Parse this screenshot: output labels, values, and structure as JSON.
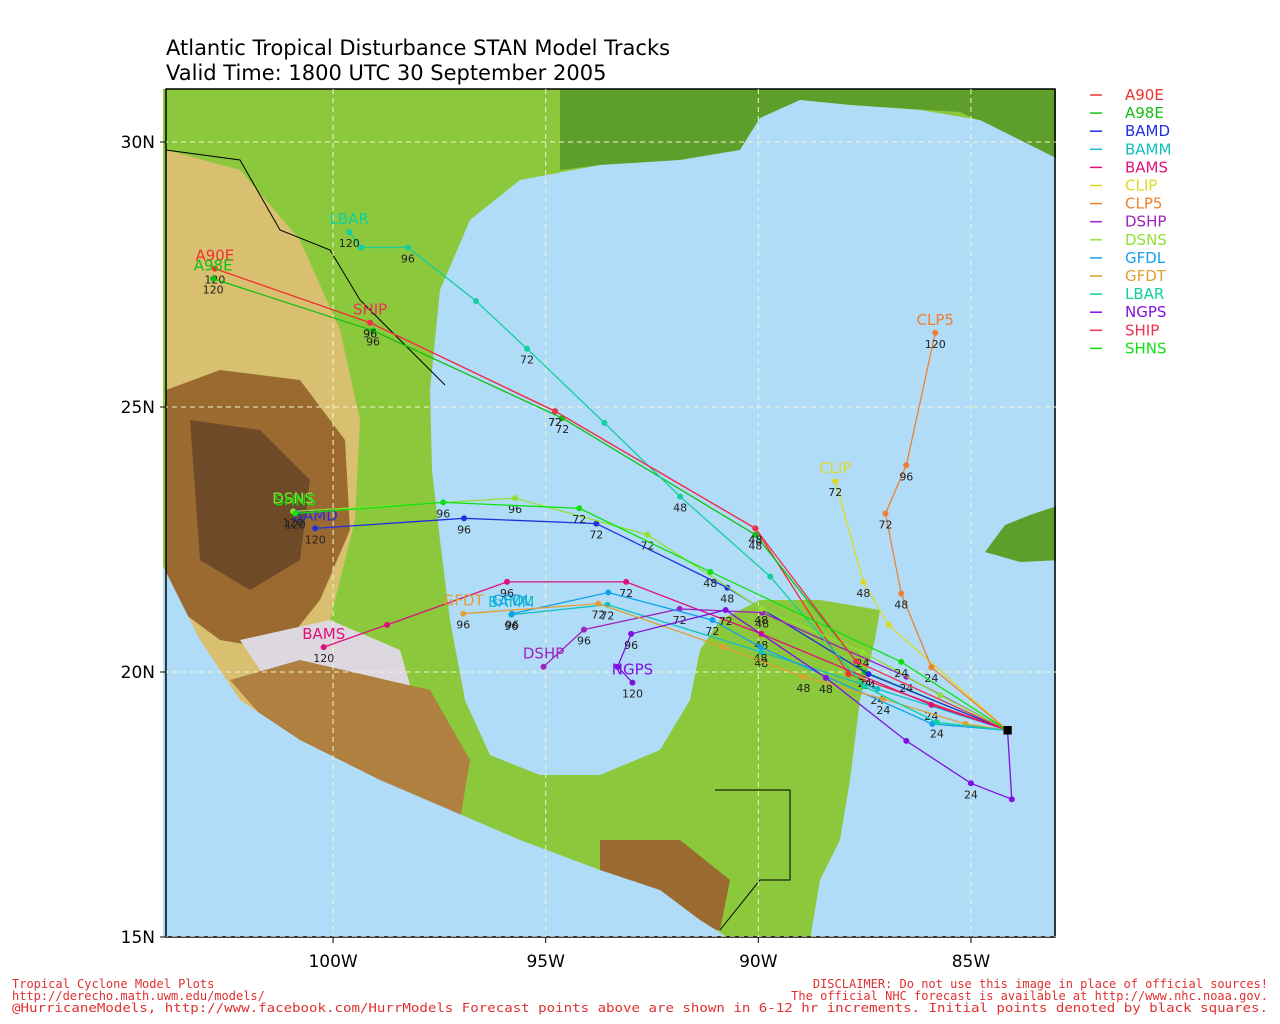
{
  "chart_data": {
    "type": "map-tracks",
    "title": "Atlantic Tropical Disturbance STAN Model Tracks",
    "subtitle": "Valid Time: 1800 UTC 30 September 2005",
    "xlim": [
      -104,
      -83
    ],
    "ylim": [
      15,
      31
    ],
    "xticks": [
      {
        "value": -100,
        "label": "100W"
      },
      {
        "value": -95,
        "label": "95W"
      },
      {
        "value": -90,
        "label": "90W"
      },
      {
        "value": -85,
        "label": "85W"
      }
    ],
    "yticks": [
      {
        "value": 15,
        "label": "15N"
      },
      {
        "value": 20,
        "label": "20N"
      },
      {
        "value": 25,
        "label": "25N"
      },
      {
        "value": 30,
        "label": "30N"
      }
    ],
    "grid": true,
    "series": [
      {
        "name": "A90E",
        "color": "#f03030",
        "x": [
          -84.14,
          -87.88,
          -90.07,
          -94.78,
          -99.13,
          -102.78
        ],
        "y": [
          18.9,
          19.96,
          22.71,
          24.92,
          26.59,
          27.61
        ],
        "point_labels": [
          null,
          null,
          "48",
          "72",
          "96",
          "120"
        ]
      },
      {
        "name": "A98E",
        "color": "#10c010",
        "x": [
          -84.14,
          -87.5,
          -90.07,
          -94.61,
          -99.06,
          -102.82
        ],
        "y": [
          18.9,
          20.0,
          22.59,
          24.79,
          26.44,
          27.42
        ],
        "point_labels": [
          null,
          "24",
          "48",
          "72",
          "96",
          "120"
        ]
      },
      {
        "name": "BAMD",
        "color": "#2030e0",
        "x": [
          -84.14,
          -87.41,
          -90.73,
          -93.81,
          -96.92,
          -100.42
        ],
        "y": [
          18.9,
          19.96,
          21.59,
          22.8,
          22.9,
          22.71
        ],
        "point_labels": [
          null,
          "24",
          "48",
          "72",
          "96",
          "120"
        ]
      },
      {
        "name": "BAMM",
        "color": "#10c0c0",
        "x": [
          -84.14,
          -87.2,
          -89.93,
          -93.55,
          -95.81
        ],
        "y": [
          18.9,
          19.68,
          20.38,
          21.27,
          21.08
        ],
        "point_labels": [
          null,
          "24",
          "48",
          "72",
          "96"
        ]
      },
      {
        "name": "BAMS",
        "color": "#e0107a",
        "x": [
          -84.14,
          -85.93,
          -89.93,
          -93.11,
          -95.91,
          -98.73,
          -100.22
        ],
        "y": [
          18.9,
          19.38,
          20.72,
          21.7,
          21.7,
          20.89,
          20.47
        ],
        "point_labels": [
          null,
          "24",
          "48",
          "72",
          "96",
          null,
          "120"
        ]
      },
      {
        "name": "CLIP",
        "color": "#e0d820",
        "x": [
          -84.14,
          -86.94,
          -87.53,
          -88.19
        ],
        "y": [
          18.9,
          20.89,
          21.7,
          23.6
        ],
        "point_labels": [
          null,
          null,
          "48",
          "72"
        ]
      },
      {
        "name": "CLP5",
        "color": "#f08030",
        "x": [
          -84.14,
          -85.93,
          -86.64,
          -87.01,
          -86.52,
          -85.84
        ],
        "y": [
          18.9,
          20.09,
          21.48,
          22.99,
          23.9,
          26.4
        ],
        "point_labels": [
          null,
          "24",
          "48",
          "72",
          "96",
          "120"
        ]
      },
      {
        "name": "DSHP",
        "color": "#a020c0",
        "x": [
          -84.14,
          -86.52,
          -89.91,
          -91.85,
          -94.1,
          -95.05
        ],
        "y": [
          18.9,
          19.91,
          21.12,
          21.19,
          20.8,
          20.1
        ],
        "point_labels": [
          null,
          "24",
          "48",
          "72",
          "96",
          null
        ]
      },
      {
        "name": "DSNS",
        "color": "#90e030",
        "x": [
          -84.14,
          -85.72,
          -87.55,
          -89.93,
          -92.61,
          -95.72,
          -100.94
        ],
        "y": [
          18.9,
          19.56,
          20.38,
          21.19,
          22.59,
          23.28,
          23.03
        ],
        "point_labels": [
          null,
          null,
          "24",
          "48",
          "72",
          "96",
          "120"
        ]
      },
      {
        "name": "GFDL",
        "color": "#10a0f0",
        "x": [
          -84.14,
          -85.91,
          -89.95,
          -91.08,
          -93.53,
          -95.79
        ],
        "y": [
          18.9,
          19.02,
          20.47,
          20.98,
          21.5,
          21.1
        ],
        "point_labels": [
          null,
          null,
          "48",
          "72",
          null,
          "96"
        ]
      },
      {
        "name": "GFDT",
        "color": "#e0a030",
        "x": [
          -84.14,
          -85.13,
          -87.06,
          -88.94,
          -90.82,
          -93.76,
          -96.94
        ],
        "y": [
          18.9,
          19.02,
          19.49,
          19.91,
          20.47,
          21.29,
          21.1
        ],
        "point_labels": [
          null,
          null,
          "24",
          "48",
          null,
          "72",
          "96"
        ]
      },
      {
        "name": "LBAR",
        "color": "#10d0a0",
        "x": [
          -84.14,
          -85.8,
          -87.51,
          -89.72,
          -91.84,
          -93.62,
          -95.44,
          -96.64,
          -98.24,
          -99.34,
          -99.62
        ],
        "y": [
          18.9,
          19.05,
          19.73,
          21.8,
          23.31,
          24.7,
          26.1,
          27.0,
          28.01,
          28.01,
          28.3
        ],
        "point_labels": [
          null,
          "24",
          null,
          null,
          "48",
          null,
          "72",
          null,
          "96",
          null,
          "120"
        ]
      },
      {
        "name": "NGPS",
        "color": "#8010e0",
        "x": [
          -84.14,
          -84.04,
          -85.0,
          -86.52,
          -88.41,
          -90.77,
          -92.99,
          -93.31,
          -92.96
        ],
        "y": [
          18.9,
          17.6,
          17.9,
          18.7,
          19.89,
          21.17,
          20.72,
          20.1,
          19.8
        ],
        "point_labels": [
          null,
          null,
          "24",
          null,
          "48",
          "72",
          "96",
          null,
          "120"
        ]
      },
      {
        "name": "SHIP",
        "color": "#f03050",
        "x": [
          -84.14,
          -87.7,
          -90.07,
          -94.78,
          -99.13
        ],
        "y": [
          18.9,
          20.2,
          22.71,
          24.92,
          26.59
        ],
        "point_labels": [
          null,
          null,
          "48",
          "72",
          "96"
        ]
      },
      {
        "name": "SHNS",
        "color": "#10e010",
        "x": [
          -84.14,
          -86.64,
          -91.13,
          -94.21,
          -97.41,
          -100.89
        ],
        "y": [
          18.9,
          20.19,
          21.89,
          23.09,
          23.2,
          22.99
        ],
        "point_labels": [
          null,
          "24",
          "48",
          "72",
          "96",
          "120"
        ]
      }
    ]
  },
  "footer": {
    "left": [
      "Tropical Cyclone Model Plots",
      "http://derecho.math.uwm.edu/models/"
    ],
    "right": [
      "DISCLAIMER: Do not use this image in place of official sources!",
      "The official NHC forecast is available at http://www.nhc.noaa.gov."
    ],
    "bottom": "@HurricaneModels, http://www.facebook.com/HurrModels  Forecast points above are shown in 6-12 hr increments. Initial points denoted by black squares."
  }
}
